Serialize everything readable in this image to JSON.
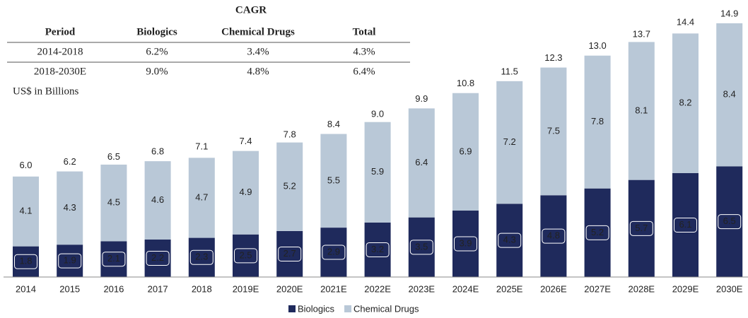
{
  "chart_data": {
    "type": "bar",
    "stacked": true,
    "y_label": "US$ in Billions",
    "categories": [
      "2014",
      "2015",
      "2016",
      "2017",
      "2018",
      "2019E",
      "2020E",
      "2021E",
      "2022E",
      "2023E",
      "2024E",
      "2025E",
      "2026E",
      "2027E",
      "2028E",
      "2029E",
      "2030E"
    ],
    "series": [
      {
        "name": "Biologics",
        "color": "#1f2a5c",
        "values": [
          1.8,
          1.9,
          2.1,
          2.2,
          2.3,
          2.5,
          2.7,
          2.9,
          3.2,
          3.5,
          3.9,
          4.3,
          4.8,
          5.2,
          5.7,
          6.1,
          6.5
        ]
      },
      {
        "name": "Chemical Drugs",
        "color": "#b9c8d7",
        "values": [
          4.1,
          4.3,
          4.5,
          4.6,
          4.7,
          4.9,
          5.2,
          5.5,
          5.9,
          6.4,
          6.9,
          7.2,
          7.5,
          7.8,
          8.1,
          8.2,
          8.4
        ]
      }
    ],
    "totals": {
      "values": [
        6.0,
        6.2,
        6.5,
        6.8,
        7.1,
        7.4,
        7.8,
        8.4,
        9.0,
        9.9,
        10.8,
        11.5,
        12.3,
        13.0,
        13.7,
        14.4,
        14.9
      ],
      "value_labels": [
        "6.0",
        "6.2",
        "6.5",
        "6.8",
        "7.1",
        "7.4",
        "7.8",
        "8.4",
        "9.0",
        "9.9",
        "10.8",
        "11.5",
        "12.3",
        "13.0",
        "13.7",
        "14.4",
        "14.9"
      ]
    },
    "ylim": [
      0,
      15
    ],
    "grid": false,
    "legend": "bottom"
  },
  "table": {
    "title": "CAGR",
    "columns": [
      "Period",
      "Biologics",
      "Chemical Drugs",
      "Total"
    ],
    "rows": [
      [
        "2014-2018",
        "6.2%",
        "3.4%",
        "4.3%"
      ],
      [
        "2018-2030E",
        "9.0%",
        "4.8%",
        "6.4%"
      ]
    ]
  }
}
